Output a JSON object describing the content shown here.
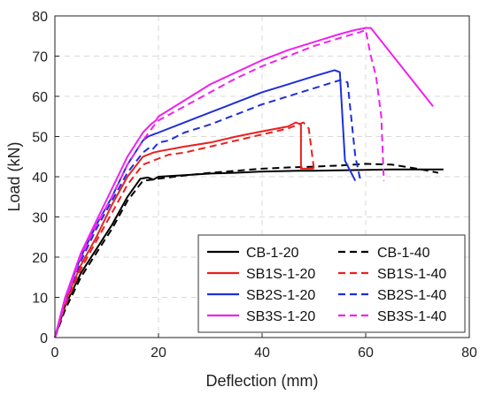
{
  "chart_data": {
    "type": "line",
    "xlabel": "Deflection (mm)",
    "ylabel": "Load (kN)",
    "xlim": [
      0,
      80
    ],
    "ylim": [
      0,
      80
    ],
    "xticks": [
      "0",
      "20",
      "40",
      "60",
      "80"
    ],
    "yticks": [
      "0",
      "10",
      "20",
      "30",
      "40",
      "50",
      "60",
      "70",
      "80"
    ],
    "grid": true,
    "legend_position": "bottom-right",
    "series": [
      {
        "name": "CB-1-20",
        "color": "#000000",
        "style": "solid",
        "x": [
          0,
          2,
          5,
          8,
          11,
          14,
          16.5,
          18,
          19,
          20,
          25,
          30,
          35,
          40,
          47,
          50,
          55,
          60,
          65,
          70,
          75
        ],
        "y": [
          0,
          8,
          16,
          22,
          28,
          35,
          39.5,
          39.8,
          39.3,
          40,
          40.4,
          40.8,
          41,
          41.3,
          41.5,
          41.5,
          41.6,
          41.7,
          41.8,
          41.8,
          41.8
        ]
      },
      {
        "name": "CB-1-40",
        "color": "#000000",
        "style": "dashed",
        "x": [
          0,
          2,
          5,
          8,
          11,
          14,
          17,
          20,
          25,
          30,
          35,
          40,
          45,
          50,
          55,
          60,
          65,
          70,
          74
        ],
        "y": [
          0,
          7,
          15,
          21,
          27,
          34,
          39,
          39.5,
          40.3,
          41,
          41.5,
          42,
          42.3,
          42.5,
          42.8,
          43.2,
          43,
          42,
          41
        ]
      },
      {
        "name": "SB1S-1-20",
        "color": "#e8201e",
        "style": "solid",
        "x": [
          0,
          2,
          5,
          8,
          11,
          14,
          17,
          19,
          20,
          25,
          30,
          35,
          40,
          45,
          46.5,
          47.5,
          47.5,
          50
        ],
        "y": [
          0,
          9,
          18,
          25,
          33,
          40,
          45,
          46,
          46.3,
          47.5,
          48.5,
          50,
          51.3,
          52.5,
          53.5,
          53,
          42,
          42
        ]
      },
      {
        "name": "SB1S-1-40",
        "color": "#e8201e",
        "style": "dashed",
        "x": [
          0,
          2,
          5,
          8,
          11,
          14,
          17,
          20,
          22,
          25,
          30,
          35,
          40,
          45,
          48,
          49,
          50
        ],
        "y": [
          0,
          8,
          17,
          24,
          31,
          38,
          43,
          44.5,
          45.5,
          46,
          47.5,
          49,
          50.5,
          52,
          53.5,
          52,
          42
        ]
      },
      {
        "name": "SB2S-1-20",
        "color": "#1f2fd8",
        "style": "solid",
        "x": [
          0,
          2,
          5,
          8,
          11,
          14,
          17,
          18,
          19,
          20,
          25,
          30,
          35,
          40,
          45,
          50,
          54,
          55,
          56,
          58
        ],
        "y": [
          0,
          10,
          20,
          28,
          35,
          43,
          49,
          50,
          50.5,
          51,
          53.5,
          56,
          58.5,
          61,
          63,
          65,
          66.5,
          66,
          44,
          39
        ]
      },
      {
        "name": "SB2S-1-40",
        "color": "#1f2fd8",
        "style": "dashed",
        "x": [
          0,
          2,
          5,
          8,
          11,
          14,
          17,
          18.5,
          19,
          20,
          22,
          25,
          30,
          35,
          40,
          45,
          50,
          55,
          56.5,
          58,
          59
        ],
        "y": [
          0,
          9,
          19,
          27,
          34,
          41,
          46,
          47.5,
          47,
          48.5,
          49,
          51,
          53,
          55.5,
          58,
          60,
          62,
          64,
          63.5,
          45,
          39
        ]
      },
      {
        "name": "SB3S-1-20",
        "color": "#ee22ee",
        "style": "solid",
        "x": [
          0,
          2,
          5,
          8,
          11,
          14,
          17,
          18.5,
          19.5,
          20,
          25,
          30,
          35,
          40,
          45,
          50,
          55,
          58,
          60,
          61,
          73
        ],
        "y": [
          0,
          10,
          21,
          29,
          37,
          45,
          51,
          53,
          54,
          55,
          59,
          63,
          66,
          69,
          71.5,
          73.5,
          75.5,
          76.5,
          77,
          77,
          57.5
        ]
      },
      {
        "name": "SB3S-1-40",
        "color": "#ee22ee",
        "style": "dashed",
        "x": [
          0,
          2,
          5,
          8,
          11,
          14,
          17,
          19,
          20,
          25,
          30,
          35,
          40,
          45,
          50,
          55,
          59,
          60,
          61,
          62,
          63,
          63.5
        ],
        "y": [
          0,
          9,
          20,
          28,
          35,
          43,
          49,
          52.5,
          54,
          57.5,
          61,
          64.5,
          67.5,
          70,
          72.5,
          74.5,
          76,
          76.5,
          70,
          65,
          55,
          39
        ]
      }
    ]
  }
}
